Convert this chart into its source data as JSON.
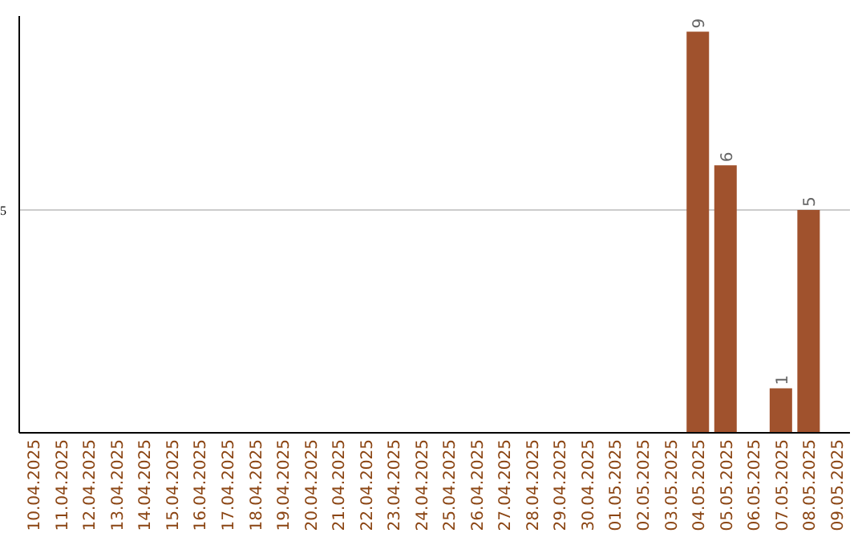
{
  "chart_data": {
    "type": "bar",
    "categories": [
      "10.04.2025",
      "11.04.2025",
      "12.04.2025",
      "13.04.2025",
      "14.04.2025",
      "15.04.2025",
      "16.04.2025",
      "17.04.2025",
      "18.04.2025",
      "19.04.2025",
      "20.04.2025",
      "21.04.2025",
      "22.04.2025",
      "23.04.2025",
      "24.04.2025",
      "25.04.2025",
      "26.04.2025",
      "27.04.2025",
      "28.04.2025",
      "29.04.2025",
      "30.04.2025",
      "01.05.2025",
      "02.05.2025",
      "03.05.2025",
      "04.05.2025",
      "05.05.2025",
      "06.05.2025",
      "07.05.2025",
      "08.05.2025",
      "09.05.2025"
    ],
    "values": [
      null,
      null,
      null,
      null,
      null,
      null,
      null,
      null,
      null,
      null,
      null,
      null,
      null,
      null,
      null,
      null,
      null,
      null,
      null,
      null,
      null,
      null,
      null,
      null,
      9,
      6,
      null,
      1,
      5,
      null
    ],
    "color": "#a0522d",
    "ylim": [
      0,
      9.35
    ],
    "yticks": [
      5
    ],
    "grid": "y",
    "data_labels": true
  }
}
